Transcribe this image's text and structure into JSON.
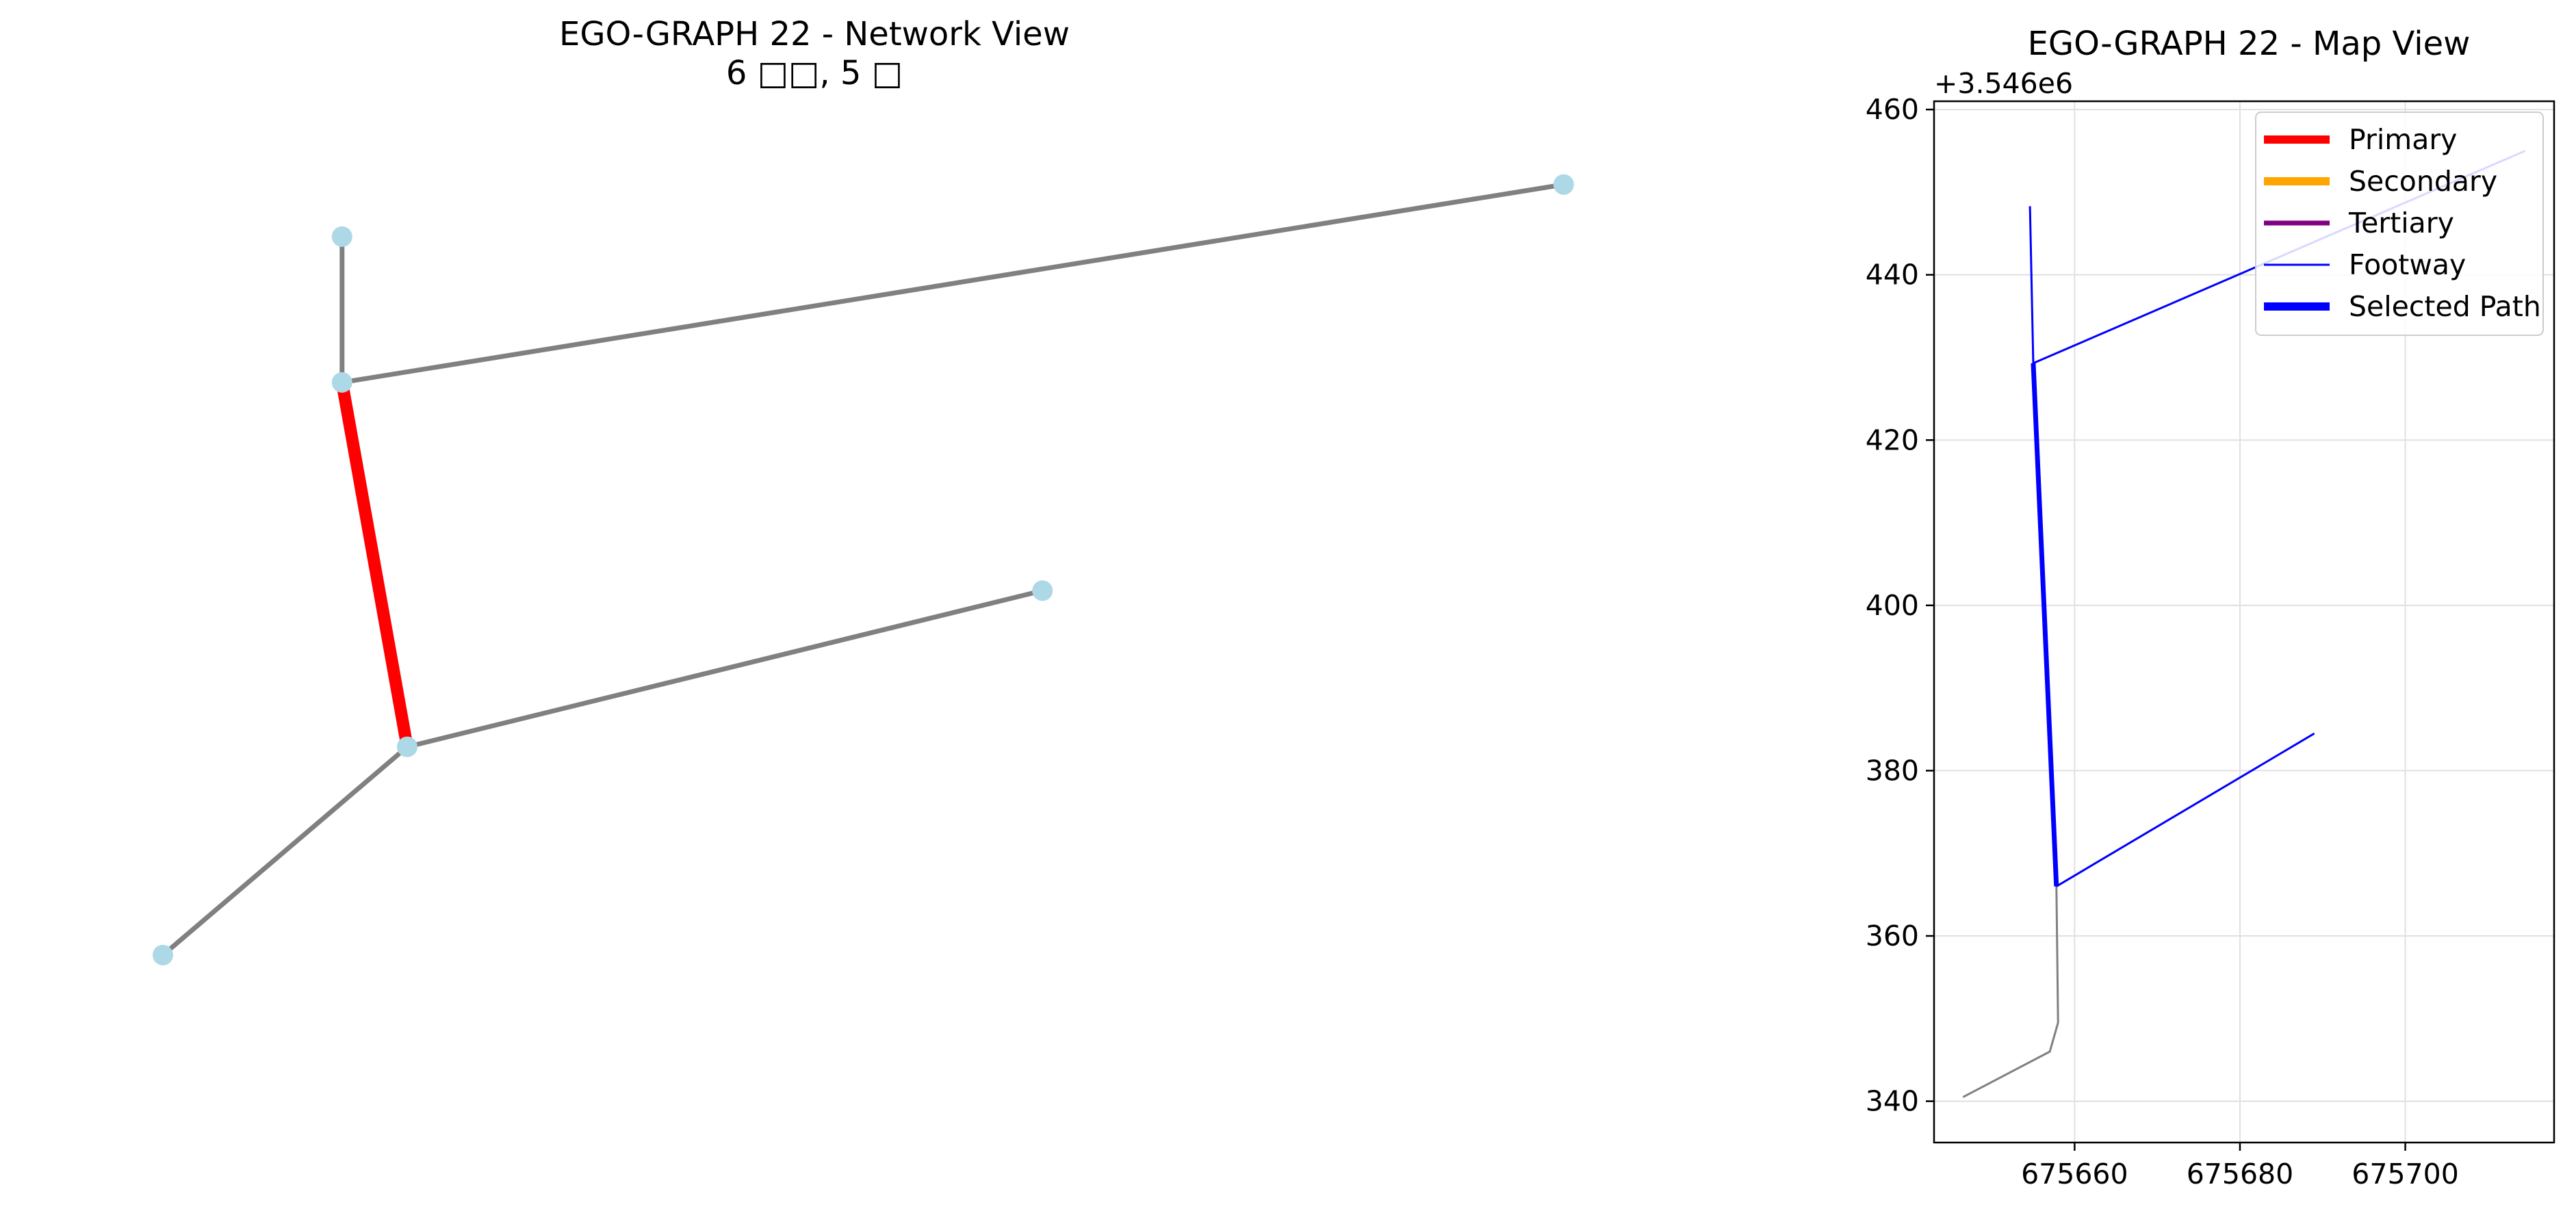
{
  "chart_data": [
    {
      "type": "network",
      "title_line1": "EGO-GRAPH 22 - Network View",
      "title_line2": "6 □□, 5 □",
      "axes_visible": false,
      "node_color": "#add8e6",
      "default_edge_color": "#808080",
      "nodes": [
        {
          "id": "n1",
          "x": 0.1,
          "y": 0.82
        },
        {
          "id": "n2",
          "x": 0.25,
          "y": 0.62
        },
        {
          "id": "n3",
          "x": 0.64,
          "y": 0.47
        },
        {
          "id": "n4",
          "x": 0.21,
          "y": 0.27
        },
        {
          "id": "n5",
          "x": 0.21,
          "y": 0.13
        },
        {
          "id": "n6",
          "x": 0.96,
          "y": 0.08
        }
      ],
      "edges": [
        {
          "from": "n1",
          "to": "n2",
          "color": "#808080",
          "highlight": false
        },
        {
          "from": "n2",
          "to": "n3",
          "color": "#808080",
          "highlight": false
        },
        {
          "from": "n2",
          "to": "n4",
          "color": "#ff0000",
          "highlight": true
        },
        {
          "from": "n4",
          "to": "n5",
          "color": "#808080",
          "highlight": false
        },
        {
          "from": "n4",
          "to": "n6",
          "color": "#808080",
          "highlight": false
        }
      ]
    },
    {
      "type": "line",
      "title": "EGO-GRAPH 22 - Map View",
      "offset_text": "+3.546e6",
      "xlim": [
        675643,
        675718
      ],
      "ylim": [
        335,
        461
      ],
      "xticks": [
        675660,
        675680,
        675700
      ],
      "xtick_labels": [
        "675660",
        "675680",
        "675700"
      ],
      "yticks": [
        340,
        360,
        380,
        400,
        420,
        440,
        460
      ],
      "ytick_labels": [
        "340",
        "360",
        "380",
        "400",
        "420",
        "440",
        "460"
      ],
      "grid": true,
      "legend_position": "top-right",
      "legend": [
        {
          "label": "Primary",
          "color": "#ff0000",
          "width": "thick"
        },
        {
          "label": "Secondary",
          "color": "#ffa500",
          "width": "thick"
        },
        {
          "label": "Tertiary",
          "color": "#800080",
          "width": "medium"
        },
        {
          "label": "Footway",
          "color": "#0000ff",
          "width": "thin"
        },
        {
          "label": "Selected Path",
          "color": "#0000ff",
          "width": "thick"
        }
      ],
      "series": [
        {
          "kind": "other",
          "color": "#808080",
          "points": [
            [
              675646.5,
              340.5
            ],
            [
              675657.0,
              346.0
            ],
            [
              675658.0,
              349.5
            ],
            [
              675657.8,
              366.0
            ]
          ]
        },
        {
          "kind": "footway",
          "color": "#0000ff",
          "points": [
            [
              675654.6,
              448.3
            ],
            [
              675655.0,
              429.3
            ]
          ]
        },
        {
          "kind": "footway",
          "color": "#0000ff",
          "points": [
            [
              675655.0,
              429.3
            ],
            [
              675714.5,
              455.0
            ]
          ]
        },
        {
          "kind": "footway",
          "color": "#0000ff",
          "points": [
            [
              675657.8,
              366.0
            ],
            [
              675689.0,
              384.5
            ]
          ]
        },
        {
          "kind": "selected",
          "color": "#0000ff",
          "points": [
            [
              675655.0,
              429.3
            ],
            [
              675657.8,
              366.0
            ]
          ]
        }
      ]
    }
  ]
}
